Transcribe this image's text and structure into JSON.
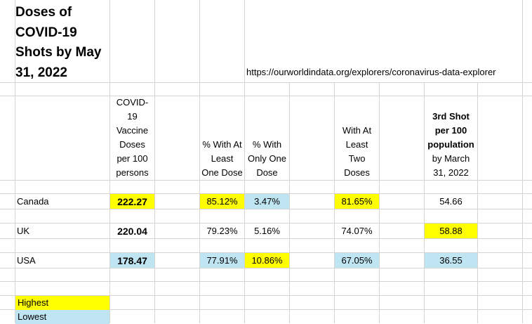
{
  "title": "Doses of COVID-19 Shots by May 31, 2022",
  "source_url": "https://ourworldindata.org/explorers/coronavirus-data-explorer",
  "headers": {
    "doses": [
      "COVID-",
      "19",
      "Vaccine",
      "Doses",
      "per 100",
      "persons"
    ],
    "at_least_one": [
      "% With At",
      "Least",
      "One Dose"
    ],
    "only_one": [
      "% With",
      "Only One",
      "Dose"
    ],
    "two_doses": [
      "With At",
      "Least",
      "Two",
      "Doses"
    ],
    "third_shot": [
      "3rd Shot",
      "per 100",
      "population",
      "by March",
      "31, 2022"
    ]
  },
  "rows": [
    {
      "country": "Canada",
      "doses": "222.27",
      "at_least_one": "85.12%",
      "only_one": "3.47%",
      "two_doses": "81.65%",
      "third_shot": "54.66"
    },
    {
      "country": "UK",
      "doses": "220.04",
      "at_least_one": "79.23%",
      "only_one": "5.16%",
      "two_doses": "74.07%",
      "third_shot": "58.88"
    },
    {
      "country": "USA",
      "doses": "178.47",
      "at_least_one": "77.91%",
      "only_one": "10.86%",
      "two_doses": "67.05%",
      "third_shot": "36.55"
    }
  ],
  "legend": {
    "highest": "Highest",
    "lowest": "Lowest"
  },
  "colors": {
    "highest": "#ffff00",
    "lowest": "#bfe4f2"
  }
}
